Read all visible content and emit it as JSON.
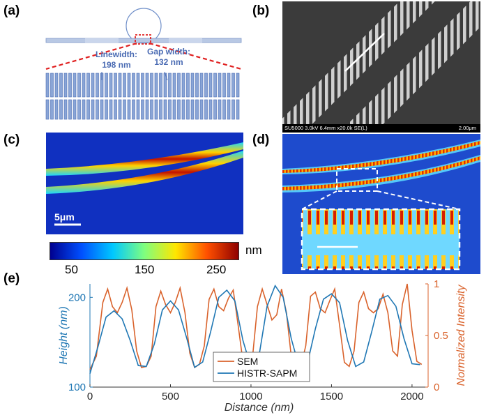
{
  "panels": {
    "a": {
      "label": "(a)",
      "linewidth_label": "Linewidth:",
      "linewidth_value": "198 nm",
      "gapwidth_label": "Gap width:",
      "gapwidth_value": "132 nm"
    },
    "b": {
      "label": "(b)",
      "sem_info": "SU5000 3.0kV 6.4mm x20.0k SE(L)",
      "scale_label": "2.00μm"
    },
    "c": {
      "label": "(c)",
      "scale_label": "5μm"
    },
    "d": {
      "label": "(d)"
    },
    "colorbar": {
      "unit": "nm",
      "ticks": [
        "50",
        "150",
        "250"
      ],
      "colors": [
        "#00008f",
        "#0050ff",
        "#00c8ff",
        "#7fff7f",
        "#ffe600",
        "#ff5000",
        "#8f0000"
      ]
    },
    "e": {
      "label": "(e)"
    }
  },
  "chart_data": {
    "type": "line",
    "xlabel": "Distance (nm)",
    "ylabel_left": "Height (nm)",
    "ylabel_right": "Normalized Intensity",
    "xlim": [
      0,
      2100
    ],
    "ylim_left": [
      100,
      215
    ],
    "ylim_right": [
      0,
      1
    ],
    "x_ticks": [
      "0",
      "500",
      "1000",
      "1500",
      "2000"
    ],
    "y_ticks_left": [
      "100",
      "200"
    ],
    "y_ticks_right": [
      "0",
      "0.5",
      "1"
    ],
    "legend_position": "bottom-center",
    "series": [
      {
        "name": "SEM",
        "axis": "right",
        "color": "#d9622b",
        "x": [
          0,
          40,
          80,
          110,
          140,
          170,
          200,
          230,
          260,
          290,
          320,
          350,
          380,
          410,
          440,
          470,
          500,
          530,
          560,
          590,
          620,
          650,
          680,
          710,
          740,
          770,
          800,
          830,
          860,
          890,
          920,
          950,
          980,
          1010,
          1040,
          1070,
          1100,
          1130,
          1160,
          1190,
          1220,
          1250,
          1280,
          1310,
          1340,
          1370,
          1400,
          1430,
          1460,
          1490,
          1520,
          1550,
          1580,
          1610,
          1640,
          1670,
          1700,
          1730,
          1760,
          1790,
          1820,
          1850,
          1880,
          1910,
          1940,
          1970,
          2000,
          2030,
          2060
        ],
        "values": [
          0.17,
          0.3,
          0.82,
          0.95,
          0.78,
          0.72,
          0.82,
          0.96,
          0.75,
          0.35,
          0.19,
          0.2,
          0.3,
          0.78,
          0.93,
          0.8,
          0.72,
          0.82,
          0.96,
          0.72,
          0.33,
          0.19,
          0.22,
          0.4,
          0.85,
          0.95,
          0.78,
          0.74,
          0.86,
          0.94,
          0.6,
          0.25,
          0.2,
          0.3,
          0.78,
          0.95,
          0.8,
          0.65,
          0.7,
          0.95,
          0.72,
          0.3,
          0.19,
          0.2,
          0.4,
          0.88,
          0.92,
          0.76,
          0.72,
          0.84,
          0.95,
          0.6,
          0.24,
          0.2,
          0.35,
          0.82,
          0.92,
          0.76,
          0.72,
          0.76,
          0.9,
          0.72,
          0.35,
          0.3,
          0.8,
          1.0,
          0.55,
          0.25,
          0.22
        ]
      },
      {
        "name": "HISTR-SAPM",
        "axis": "left",
        "color": "#1f77b4",
        "x": [
          0,
          50,
          100,
          150,
          200,
          250,
          300,
          350,
          400,
          450,
          500,
          550,
          600,
          650,
          700,
          750,
          800,
          850,
          900,
          950,
          1000,
          1050,
          1100,
          1150,
          1200,
          1250,
          1300,
          1350,
          1400,
          1450,
          1500,
          1550,
          1600,
          1650,
          1700,
          1750,
          1800,
          1850,
          1900,
          1950,
          2000,
          2050
        ],
        "values": [
          115,
          145,
          178,
          185,
          176,
          152,
          124,
          123,
          148,
          186,
          196,
          186,
          155,
          122,
          128,
          162,
          200,
          208,
          196,
          152,
          122,
          135,
          190,
          213,
          200,
          154,
          122,
          126,
          165,
          198,
          204,
          194,
          152,
          123,
          128,
          162,
          198,
          202,
          190,
          154,
          126,
          125
        ]
      }
    ]
  }
}
